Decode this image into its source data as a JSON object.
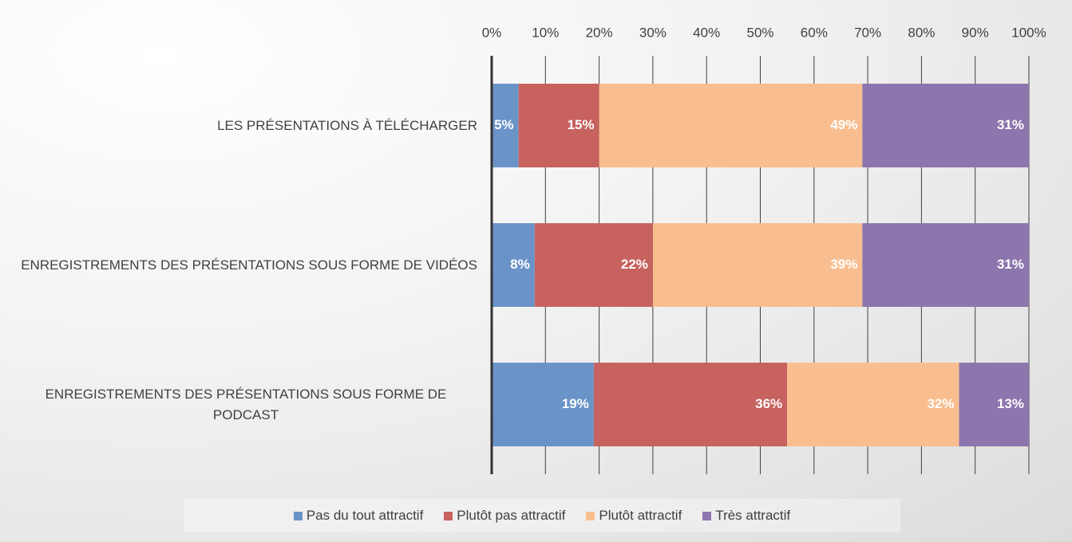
{
  "chart_data": {
    "type": "stacked-bar-horizontal",
    "categories": [
      "LES PRÉSENTATIONS À TÉLÉCHARGER",
      "ENREGISTREMENTS DES PRÉSENTATIONS SOUS FORME DE VIDÉOS",
      "ENREGISTREMENTS DES PRÉSENTATIONS SOUS FORME DE PODCAST"
    ],
    "series": [
      {
        "name": "Pas du tout attractif",
        "color": "#6a94c8",
        "values": [
          5,
          8,
          19
        ],
        "value_labels": [
          "5%",
          "8%",
          "19%"
        ]
      },
      {
        "name": "Plutôt pas attractif",
        "color": "#c7625f",
        "values": [
          15,
          22,
          36
        ],
        "value_labels": [
          "15%",
          "22%",
          "36%"
        ]
      },
      {
        "name": "Plutôt attractif",
        "color": "#f9be8f",
        "values": [
          49,
          39,
          32
        ],
        "value_labels": [
          "49%",
          "39%",
          "32%"
        ]
      },
      {
        "name": "Très attractif",
        "color": "#8d75ad",
        "values": [
          31,
          31,
          13
        ],
        "value_labels": [
          "31%",
          "31%",
          "13%"
        ]
      }
    ],
    "xlim": [
      0,
      100
    ],
    "xticks": [
      {
        "value": 0,
        "label": "0%"
      },
      {
        "value": 10,
        "label": "10%"
      },
      {
        "value": 20,
        "label": "20%"
      },
      {
        "value": 30,
        "label": "30%"
      },
      {
        "value": 40,
        "label": "40%"
      },
      {
        "value": 50,
        "label": "50%"
      },
      {
        "value": 60,
        "label": "60%"
      },
      {
        "value": 70,
        "label": "70%"
      },
      {
        "value": 80,
        "label": "80%"
      },
      {
        "value": 90,
        "label": "90%"
      },
      {
        "value": 100,
        "label": "100%"
      }
    ],
    "grid": true,
    "legend": "bottom"
  }
}
